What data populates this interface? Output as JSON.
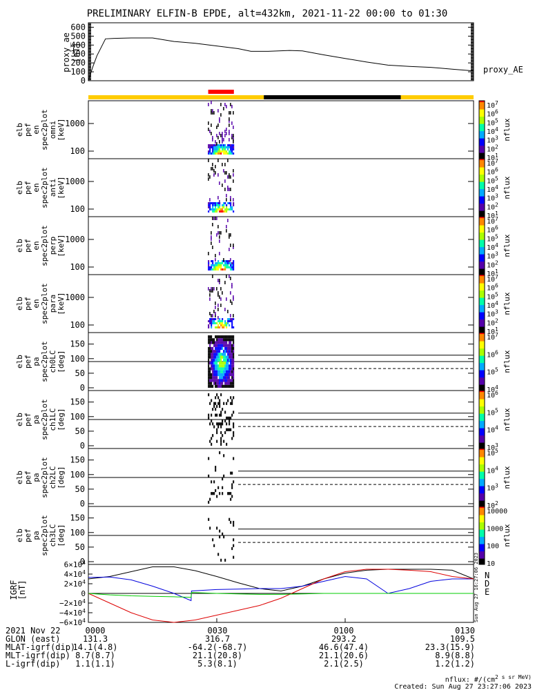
{
  "title": "PRELIMINARY ELFIN-B EPDE, alt=432km, 2021-11-22 00:00 to 01:30",
  "ae_panel": {
    "ylabel": [
      "proxy_ae",
      "[nT]"
    ],
    "ticks": [
      "600",
      "500",
      "400",
      "300",
      "200",
      "100",
      "0"
    ],
    "legend": "proxy_AE"
  },
  "spec_panels": [
    {
      "ylabel": [
        "elb",
        "pef",
        "en",
        "spec2plot",
        "omni",
        "[keV]"
      ],
      "ticks": [
        "1000",
        "100"
      ]
    },
    {
      "ylabel": [
        "elb",
        "pef",
        "en",
        "spec2plot",
        "anti",
        "[keV]"
      ],
      "ticks": [
        "1000",
        "100"
      ]
    },
    {
      "ylabel": [
        "elb",
        "pef",
        "en",
        "spec2plot",
        "perp",
        "[keV]"
      ],
      "ticks": [
        "1000",
        "100"
      ]
    },
    {
      "ylabel": [
        "elb",
        "pef",
        "en",
        "spec2plot",
        "para",
        "[keV]"
      ],
      "ticks": [
        "1000",
        "100"
      ]
    }
  ],
  "pa_panels": [
    {
      "ylabel": [
        "elb",
        "pef",
        "pa",
        "spec2plot",
        "ch0LC",
        "[deg]"
      ],
      "ticks": [
        "150",
        "100",
        "50",
        "0"
      ]
    },
    {
      "ylabel": [
        "elb",
        "pef",
        "pa",
        "spec2plot",
        "ch1LC",
        "[deg]"
      ],
      "ticks": [
        "150",
        "100",
        "50",
        "0"
      ]
    },
    {
      "ylabel": [
        "elb",
        "pef",
        "pa",
        "spec2plot",
        "ch2LC",
        "[deg]"
      ],
      "ticks": [
        "150",
        "100",
        "50",
        "0"
      ]
    },
    {
      "ylabel": [
        "elb",
        "pef",
        "pa",
        "spec2plot",
        "ch3LC",
        "[deg]"
      ],
      "ticks": [
        "150",
        "100",
        "50",
        "0"
      ]
    }
  ],
  "colorbars": [
    {
      "labels": [
        "10^7",
        "10^6",
        "10^5",
        "10^4",
        "10^3",
        "10^2",
        "10^1"
      ],
      "unit": "nflux"
    },
    {
      "labels": [
        "10^7",
        "10^6",
        "10^5",
        "10^4",
        "10^3",
        "10^2",
        "10^1"
      ],
      "unit": "nflux"
    },
    {
      "labels": [
        "10^7",
        "10^6",
        "10^5",
        "10^4",
        "10^3",
        "10^2",
        "10^1"
      ],
      "unit": "nflux"
    },
    {
      "labels": [
        "10^7",
        "10^6",
        "10^5",
        "10^4",
        "10^3",
        "10^2",
        "10^1"
      ],
      "unit": "nflux"
    },
    {
      "labels": [
        "10^7",
        "10^6",
        "10^5",
        "10^4"
      ],
      "unit": "nflux"
    },
    {
      "labels": [
        "10^6",
        "10^5",
        "10^4",
        "10^3"
      ],
      "unit": "nflux"
    },
    {
      "labels": [
        "10^5",
        "10^4",
        "10^3",
        "10^2"
      ],
      "unit": "nflux"
    },
    {
      "labels": [
        "10000",
        "1000",
        "100",
        "10"
      ],
      "unit": "nflux"
    }
  ],
  "igrf_panel": {
    "ylabel": [
      "IGRF",
      "[nT]"
    ],
    "ticks": [
      "6×10^4",
      "4×10^4",
      "2×10^4",
      "0",
      "−2×10^4",
      "−4×10^4",
      "−6×10^4"
    ],
    "legend": [
      "N",
      "D",
      "E"
    ],
    "legend_colors": [
      "#0000dd",
      "#dd0000",
      "#00cc00"
    ],
    "stamp": "Sun Aug 27 16:27:06 2023"
  },
  "footer": {
    "rows": [
      [
        "2021 Nov 22",
        "0000",
        "0030",
        "0100",
        "0130"
      ],
      [
        "GLON (east)",
        "131.3",
        "316.7",
        "293.2",
        "109.5"
      ],
      [
        "MLAT-igrf(dip)",
        "14.1(4.8)",
        "-64.2(-68.7)",
        "46.6(47.4)",
        "23.3(15.9)"
      ],
      [
        "MLT-igrf(dip)",
        "8.7(8.7)",
        "21.1(20.8)",
        "21.1(20.6)",
        "8.9(8.8)"
      ],
      [
        "L-igrf(dip)",
        "1.1(1.1)",
        "5.3(8.1)",
        "2.1(2.5)",
        "1.2(1.2)"
      ]
    ],
    "note1": "nflux: #/(cm^2 s sr MeV)",
    "note2": "Created: Sun Aug 27 23:27:06 2023"
  },
  "chart_data": [
    {
      "type": "line",
      "title": "PRELIMINARY ELFIN-B EPDE, alt=432km, 2021-11-22 00:00 to 01:30",
      "ylabel": "proxy_ae [nT]",
      "ylim": [
        0,
        650
      ],
      "xlim_minutes": [
        0,
        90
      ],
      "series": [
        {
          "name": "proxy_AE",
          "x": [
            0,
            1,
            2,
            4,
            6,
            10,
            15,
            20,
            25,
            30,
            35,
            38,
            42,
            47,
            50,
            55,
            60,
            65,
            70,
            75,
            80,
            85,
            90
          ],
          "y": [
            0,
            150,
            280,
            470,
            475,
            480,
            480,
            440,
            420,
            390,
            360,
            330,
            330,
            340,
            335,
            290,
            250,
            210,
            175,
            160,
            150,
            130,
            110
          ]
        }
      ]
    },
    {
      "type": "timeline",
      "bar_segments": [
        {
          "start": 0,
          "end": 41,
          "color": "#ffcc00"
        },
        {
          "start": 41,
          "end": 73,
          "color": "#000000"
        },
        {
          "start": 73,
          "end": 90,
          "color": "#ffcc00"
        }
      ],
      "marker": {
        "start": 28,
        "end": 34,
        "color": "#ff0000"
      }
    },
    {
      "type": "heatmap",
      "panels": [
        "omni",
        "anti",
        "perp",
        "para",
        "ch0LC",
        "ch1LC",
        "ch2LC",
        "ch3LC"
      ],
      "active_window_minutes": [
        28,
        34
      ],
      "colorscale": [
        "#ffffff",
        "#000000",
        "#5500aa",
        "#0000ff",
        "#00aaff",
        "#00ffaa",
        "#aaff00",
        "#ffff00",
        "#ff8800",
        "#ff0000"
      ]
    },
    {
      "type": "line",
      "ylabel": "IGRF [nT]",
      "ylim": [
        -60000,
        60000
      ],
      "xlim_minutes": [
        0,
        90
      ],
      "series": [
        {
          "name": "",
          "x": [
            0,
            5,
            10,
            15,
            20,
            25,
            30,
            35,
            40,
            45,
            50,
            55,
            60,
            65,
            70,
            75,
            80,
            85,
            90
          ],
          "y": [
            30000,
            35000,
            45000,
            55000,
            55000,
            47000,
            35000,
            22000,
            10000,
            5000,
            15000,
            30000,
            42000,
            48000,
            50000,
            50000,
            50000,
            48000,
            30000
          ]
        },
        {
          "name": "N",
          "x": [
            0,
            5,
            10,
            15,
            20,
            24,
            24.1,
            30,
            35,
            40,
            45,
            50,
            55,
            60,
            65,
            70,
            75,
            80,
            85,
            90
          ],
          "y": [
            33000,
            34000,
            28000,
            15000,
            0,
            -15000,
            5000,
            8000,
            9000,
            10000,
            10000,
            15000,
            25000,
            35000,
            30000,
            0,
            10000,
            25000,
            30000,
            30000
          ]
        },
        {
          "name": "D",
          "x": [
            0,
            5,
            10,
            15,
            20,
            25,
            30,
            35,
            40,
            45,
            50,
            55,
            60,
            65,
            70,
            75,
            80,
            85,
            90
          ],
          "y": [
            0,
            -20000,
            -40000,
            -55000,
            -60000,
            -55000,
            -45000,
            -35000,
            -25000,
            -10000,
            10000,
            30000,
            45000,
            50000,
            50000,
            48000,
            45000,
            35000,
            30000
          ]
        },
        {
          "name": "E",
          "x": [
            0,
            5,
            10,
            15,
            20,
            24,
            24.1,
            30,
            35,
            40,
            45,
            50,
            55,
            60,
            65,
            70,
            75,
            80,
            85,
            90
          ],
          "y": [
            0,
            -3000,
            -5000,
            -6000,
            -7000,
            -8000,
            2000,
            0,
            -1000,
            -2000,
            -2000,
            -1000,
            0,
            0,
            0,
            0,
            0,
            0,
            0,
            0
          ]
        }
      ],
      "series_colors": [
        "#000000",
        "#0000dd",
        "#dd0000",
        "#00cc00"
      ]
    }
  ]
}
